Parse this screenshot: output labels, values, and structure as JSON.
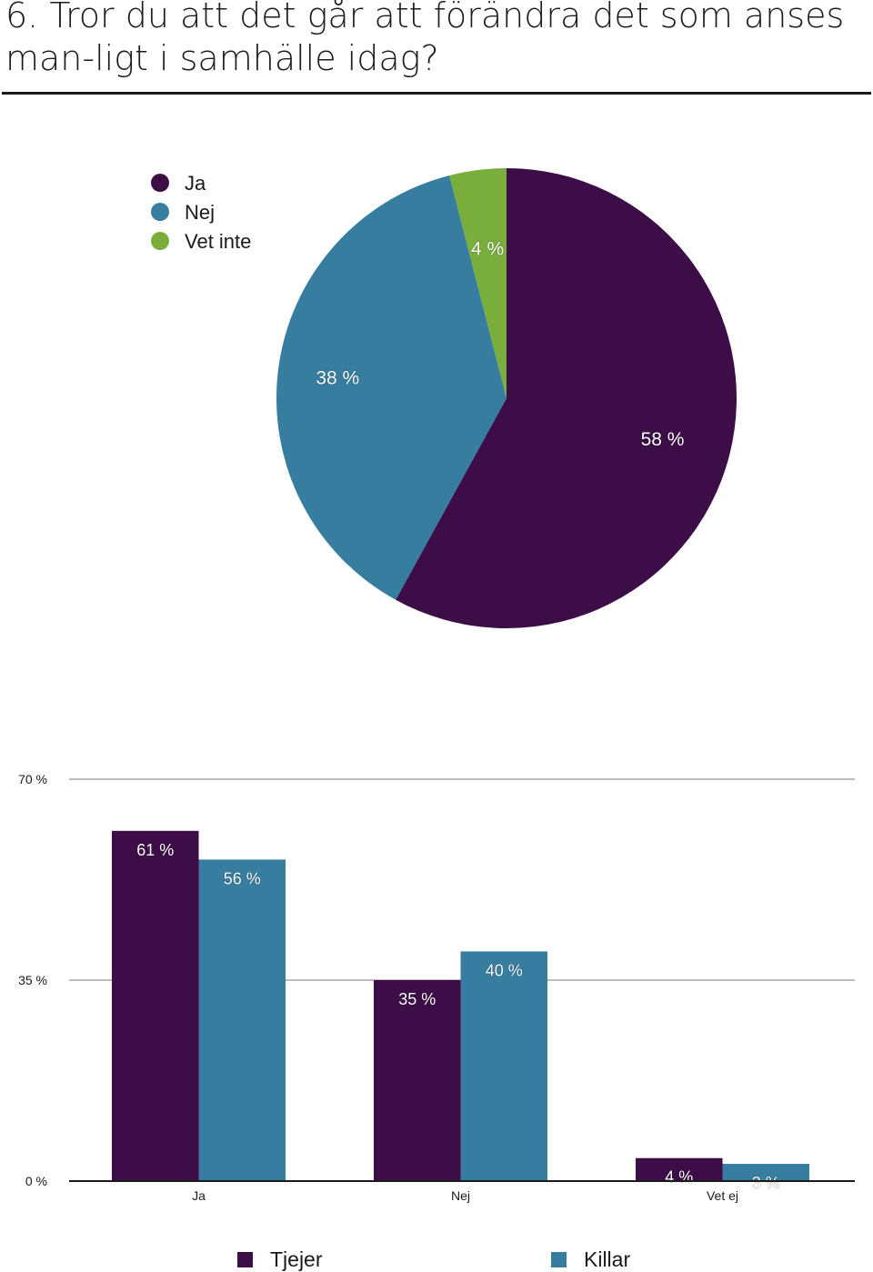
{
  "page": {
    "question": "6. Tror du att det går att förändra det som anses man-ligt i samhälle idag?"
  },
  "chart_data": [
    {
      "type": "pie",
      "slices": [
        {
          "label": "Ja",
          "value": 58,
          "data_label": "58 %",
          "color": "#3c0d47"
        },
        {
          "label": "Nej",
          "value": 38,
          "data_label": "38 %",
          "color": "#367da0"
        },
        {
          "label": "Vet inte",
          "value": 4,
          "data_label": "4 %",
          "color": "#79ad3c"
        }
      ],
      "legend_position": "top-left"
    },
    {
      "type": "bar",
      "categories": [
        "Ja",
        "Nej",
        "Vet ej"
      ],
      "series": [
        {
          "name": "Tjejer",
          "values": [
            61,
            35,
            4
          ],
          "labels": [
            "61 %",
            "35 %",
            "4 %"
          ],
          "color": "#3c0d47"
        },
        {
          "name": "Killar",
          "values": [
            56,
            40,
            3
          ],
          "labels": [
            "56 %",
            "40 %",
            "3 %"
          ],
          "color": "#367da0"
        }
      ],
      "ylim": [
        0,
        70
      ],
      "yticks": [
        {
          "value": 0,
          "label": "0 %"
        },
        {
          "value": 35,
          "label": "35 %"
        },
        {
          "value": 70,
          "label": "70 %"
        }
      ],
      "grid": true,
      "legend_position": "bottom"
    }
  ]
}
